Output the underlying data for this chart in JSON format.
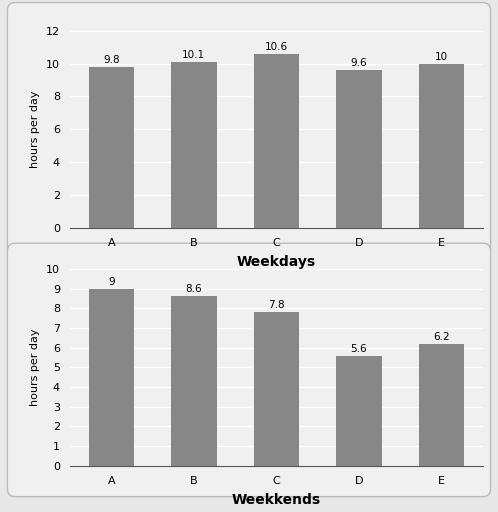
{
  "universities": [
    "A",
    "B",
    "C",
    "D",
    "E"
  ],
  "weekday_values": [
    9.8,
    10.1,
    10.6,
    9.6,
    10
  ],
  "weekend_values": [
    9,
    8.6,
    7.8,
    5.6,
    6.2
  ],
  "bar_color": "#878787",
  "weekday_xlabel": "Weekdays",
  "weekend_xlabel": "Weekkends",
  "ylabel": "hours per day",
  "weekday_ylim": [
    0,
    12
  ],
  "weekday_yticks": [
    0,
    2,
    4,
    6,
    8,
    10,
    12
  ],
  "weekend_ylim": [
    0,
    10
  ],
  "weekend_yticks": [
    0,
    1,
    2,
    3,
    4,
    5,
    6,
    7,
    8,
    9,
    10
  ],
  "bg_color": "#f0f0f0",
  "outer_bg": "#e8e8e8",
  "label_fontsize": 7.5,
  "axis_label_fontsize": 8,
  "xlabel_fontsize": 10,
  "tick_fontsize": 8,
  "box_edge_color": "#bbbbbb",
  "grid_color": "#ffffff",
  "bottom_spine_color": "#555555"
}
